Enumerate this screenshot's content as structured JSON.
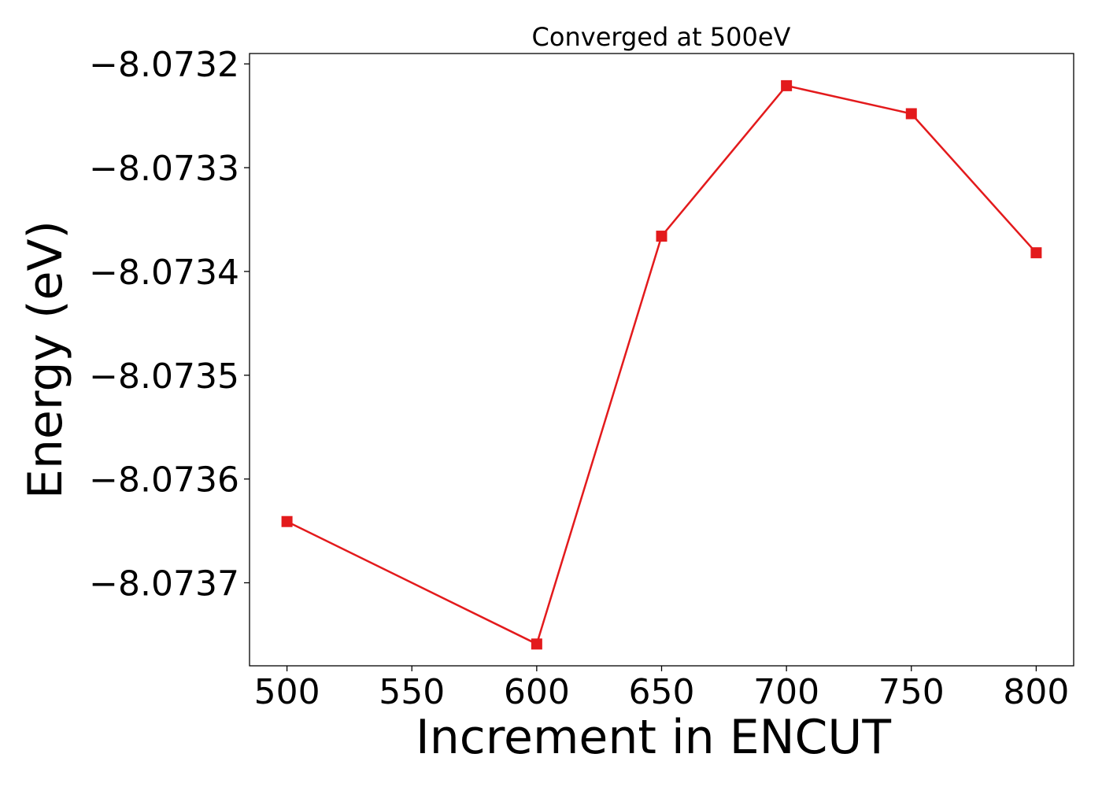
{
  "chart_data": {
    "type": "line",
    "title": "Converged at 500eV",
    "xlabel": "Increment in ENCUT",
    "ylabel": "Energy (eV)",
    "xlim": [
      485,
      815
    ],
    "ylim": [
      -8.07378,
      -8.07319
    ],
    "xticks": [
      500,
      550,
      600,
      650,
      700,
      750,
      800
    ],
    "xtick_labels": [
      "500",
      "550",
      "600",
      "650",
      "700",
      "750",
      "800"
    ],
    "yticks": [
      -8.0732,
      -8.0733,
      -8.0734,
      -8.0735,
      -8.0736,
      -8.0737
    ],
    "ytick_labels": [
      "−8.0732",
      "−8.0733",
      "−8.0734",
      "−8.0735",
      "−8.0736",
      "−8.0737"
    ],
    "grid": false,
    "legend": "none",
    "series": [
      {
        "color": "#e31a1c",
        "marker": "square",
        "x": [
          500,
          600,
          650,
          700,
          750,
          800
        ],
        "y": [
          -8.073641,
          -8.073759,
          -8.073366,
          -8.073221,
          -8.073248,
          -8.073382
        ]
      }
    ]
  }
}
